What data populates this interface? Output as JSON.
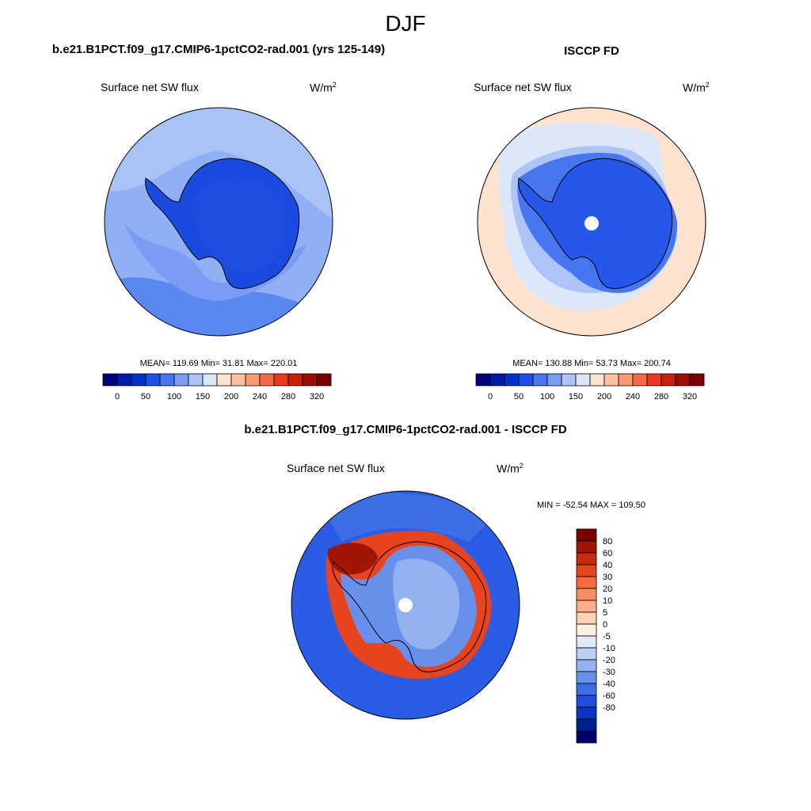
{
  "page_title": "DJF",
  "panels": {
    "model": {
      "title": "b.e21.B1PCT.f09_g17.CMIP6-1pctCO2-rad.001 (yrs 125-149)",
      "variable": "Surface net SW flux",
      "units_base": "W/m",
      "units_exp": "2",
      "stats": "MEAN= 119.69  Min=  31.81  Max= 220.01"
    },
    "obs": {
      "title": "ISCCP FD",
      "variable": "Surface net SW flux",
      "units_base": "W/m",
      "units_exp": "2",
      "stats": "MEAN= 130.88  Min=  53.73  Max= 200.74"
    },
    "diff": {
      "title": "b.e21.B1PCT.f09_g17.CMIP6-1pctCO2-rad.001 - ISCCP FD",
      "variable": "Surface net SW flux",
      "units_base": "W/m",
      "units_exp": "2",
      "stats": "MIN = -52.54 MAX = 109.50"
    }
  },
  "colorbars": {
    "horizontal": {
      "colors": [
        "#00007f",
        "#0019a6",
        "#0031cc",
        "#1f4fe6",
        "#4875f0",
        "#7b9cf4",
        "#aec4f7",
        "#dbe7f9",
        "#fde3cf",
        "#fcc3a3",
        "#f99a76",
        "#f4694a",
        "#e93a1f",
        "#c8200c",
        "#9a0e05",
        "#7a0000"
      ],
      "labels": [
        "0",
        "50",
        "100",
        "150",
        "200",
        "240",
        "280",
        "320"
      ]
    },
    "vertical": {
      "colors": [
        "#7a0000",
        "#a01503",
        "#c92a0a",
        "#e74420",
        "#f7693e",
        "#fa8c64",
        "#fcae8c",
        "#fdd1b6",
        "#fdf0e3",
        "#dfe9f8",
        "#bccff5",
        "#94b1f1",
        "#6890eb",
        "#3d6ee6",
        "#1d4ede",
        "#0c34c2",
        "#01208f",
        "#00006e"
      ],
      "labels": [
        "80",
        "60",
        "40",
        "30",
        "20",
        "10",
        "5",
        "0",
        "-5",
        "-10",
        "-20",
        "-30",
        "-40",
        "-60",
        "-80"
      ]
    }
  },
  "colors": {
    "ocean_model": "#5b87f0",
    "ocean_model_light": "#a9c2f6",
    "ice_model": "#1a4ae0",
    "ocean_obs": "#fde3cf",
    "ocean_obs_light": "#dce8fa",
    "ice_obs": "#2557e8",
    "diff_ocean": "#2a5ce6",
    "diff_ring": "#e8431f"
  }
}
